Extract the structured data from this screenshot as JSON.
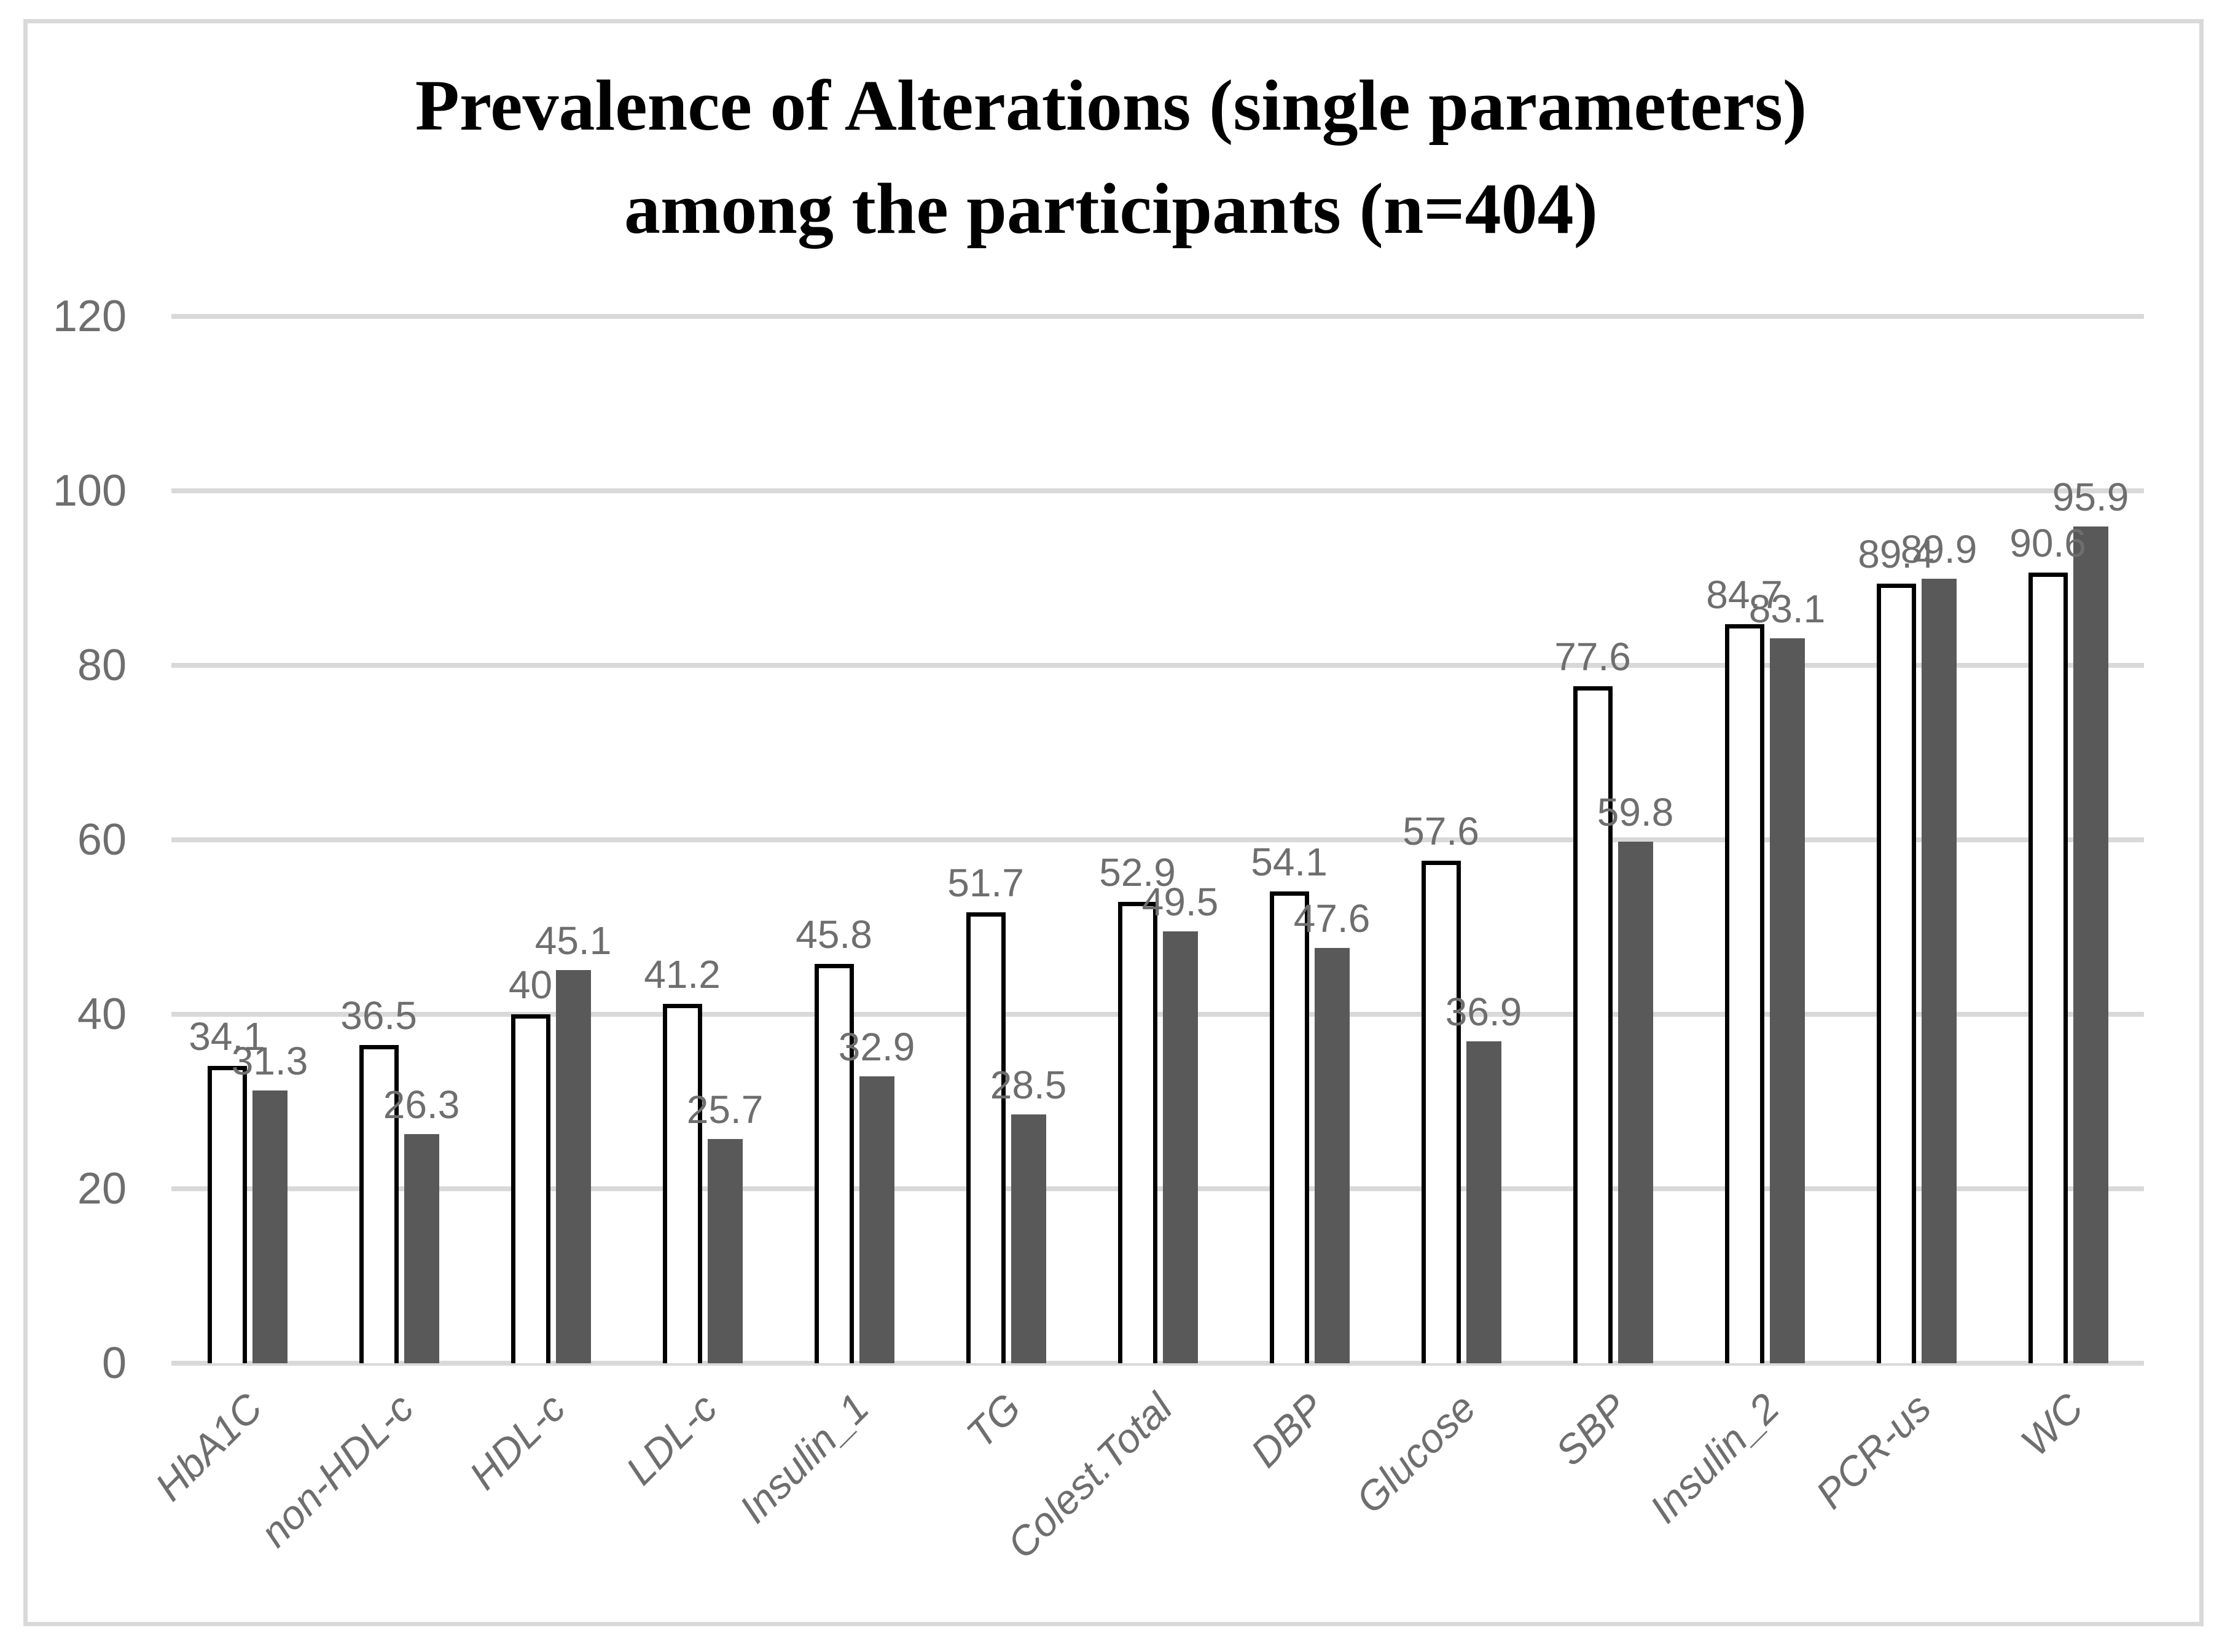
{
  "title": {
    "line1": "Prevalence of Alterations (single parameters)",
    "line2": "among the participants (n=404)"
  },
  "chart_data": {
    "type": "bar",
    "title": "Prevalence of Alterations (single parameters) among the participants (n=404)",
    "categories": [
      "HbA1C",
      "non-HDL-c",
      "HDL-c",
      "LDL-c",
      "Insulin_1",
      "TG",
      "Colest.Total",
      "DBP",
      "Glucose",
      "SBP",
      "Insulin_2",
      "PCR-us",
      "WC"
    ],
    "series": [
      {
        "name": "Series 1",
        "style": "white-outlined-bar",
        "fill": "#ffffff",
        "stroke": "#000000",
        "values": [
          34.1,
          36.5,
          40,
          41.2,
          45.8,
          51.7,
          52.9,
          54.1,
          57.6,
          77.6,
          84.7,
          89.4,
          90.6
        ],
        "labels": [
          "34.1",
          "36.5",
          "40",
          "41.2",
          "45.8",
          "51.7",
          "52.9",
          "54.1",
          "57.6",
          "77.6",
          "84.7",
          "89.4",
          "90.6"
        ]
      },
      {
        "name": "Series 2",
        "style": "solid-gray-bar",
        "fill": "#595959",
        "stroke": "none",
        "values": [
          31.3,
          26.3,
          45.1,
          25.7,
          32.9,
          28.5,
          49.5,
          47.6,
          36.9,
          59.8,
          83.1,
          89.9,
          95.9
        ],
        "labels": [
          "31.3",
          "26.3",
          "45.1",
          "25.7",
          "32.9",
          "28.5",
          "49.5",
          "47.6",
          "36.9",
          "59.8",
          "83.1",
          "89.9",
          "95.9"
        ]
      }
    ],
    "xlabel": "",
    "ylabel": "",
    "ylim": [
      0,
      120
    ],
    "yticks": [
      0,
      20,
      40,
      60,
      80,
      100,
      120
    ],
    "grid": true,
    "legend": "none",
    "data_labels_shown": true,
    "x_label_rotation_deg": 45
  },
  "colors": {
    "gridline": "#d9d9d9",
    "frame_border": "#d9d9d9",
    "axis_text": "#6e6e6e",
    "data_label_text": "#6e6e6e",
    "title_text": "#000000",
    "bar_dark_fill": "#595959",
    "bar_outline": "#000000",
    "background": "#ffffff"
  }
}
